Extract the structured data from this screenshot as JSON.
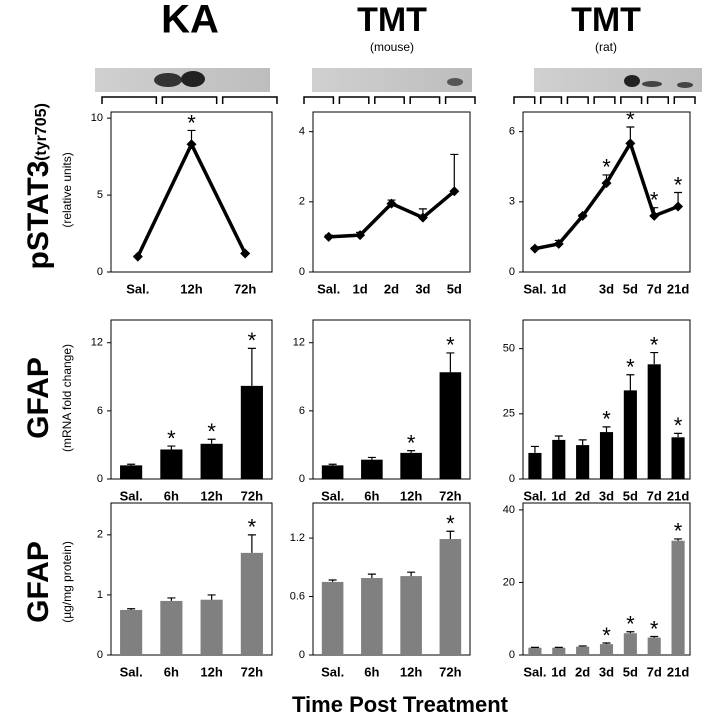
{
  "columns": [
    {
      "label": "KA"
    },
    {
      "label": "TMT",
      "sub": "(mouse)"
    },
    {
      "label": "TMT",
      "sub": "(rat)"
    }
  ],
  "rows": [
    {
      "label": "pSTAT3",
      "qualifier": "(tyr705)",
      "unit": "(relative units)"
    },
    {
      "label": "GFAP",
      "unit": "(mRNA fold change)"
    },
    {
      "label": "GFAP",
      "unit": "(µg/mg protein)"
    }
  ],
  "x_label": "Time Post Treatment",
  "chart_data": [
    {
      "type": "line",
      "color": "#000000",
      "categories": [
        "Sal.",
        "12h",
        "72h"
      ],
      "values": [
        1,
        8.3,
        1.2
      ],
      "errors": [
        0.05,
        0.9,
        0.05
      ],
      "annotations": [
        null,
        "*",
        null
      ],
      "ylim": [
        0,
        10.4
      ],
      "yticks": [
        0,
        5,
        10
      ]
    },
    {
      "type": "line",
      "color": "#000000",
      "categories": [
        "Sal.",
        "1d",
        "2d",
        "3d",
        "5d"
      ],
      "values": [
        1,
        1.05,
        1.95,
        1.55,
        2.3
      ],
      "errors": [
        0.05,
        0.08,
        0.1,
        0.25,
        1.05
      ],
      "annotations": [
        null,
        null,
        null,
        null,
        null
      ],
      "ylim": [
        0,
        4.56
      ],
      "yticks": [
        0,
        2,
        4
      ]
    },
    {
      "type": "line",
      "color": "#000000",
      "categories": [
        "Sal.",
        "1d",
        null,
        "3d",
        "5d",
        "7d",
        "21d"
      ],
      "values": [
        1,
        1.2,
        2.4,
        3.8,
        5.5,
        2.4,
        2.8
      ],
      "errors": [
        0.05,
        0.15,
        0.05,
        0.35,
        0.7,
        0.35,
        0.6
      ],
      "annotations": [
        null,
        null,
        null,
        "*",
        "*",
        "*",
        "*"
      ],
      "ylim": [
        0,
        6.84
      ],
      "yticks": [
        0,
        3,
        6
      ]
    },
    {
      "type": "bar",
      "color": "#000000",
      "categories": [
        "Sal.",
        "6h",
        "12h",
        "72h"
      ],
      "values": [
        1.2,
        2.6,
        3.1,
        8.2
      ],
      "errors": [
        0.1,
        0.3,
        0.4,
        3.3
      ],
      "annotations": [
        null,
        "*",
        "*",
        "*"
      ],
      "ylim": [
        0,
        14
      ],
      "yticks": [
        0,
        6,
        12
      ]
    },
    {
      "type": "bar",
      "color": "#000000",
      "categories": [
        "Sal.",
        "6h",
        "12h",
        "72h"
      ],
      "values": [
        1.2,
        1.7,
        2.3,
        9.4
      ],
      "errors": [
        0.1,
        0.2,
        0.2,
        1.7
      ],
      "annotations": [
        null,
        null,
        "*",
        "*"
      ],
      "ylim": [
        0,
        14
      ],
      "yticks": [
        0,
        6,
        12
      ]
    },
    {
      "type": "bar",
      "color": "#000000",
      "categories": [
        "Sal.",
        "1d",
        "2d",
        "3d",
        "5d",
        "7d",
        "21d"
      ],
      "values": [
        10,
        15,
        13,
        18,
        34,
        44,
        16
      ],
      "errors": [
        2.5,
        1.5,
        2,
        2,
        6,
        4.5,
        1.5
      ],
      "annotations": [
        null,
        null,
        null,
        "*",
        "*",
        "*",
        "*"
      ],
      "ylim": [
        0,
        61
      ],
      "yticks": [
        0,
        25,
        50
      ]
    },
    {
      "type": "bar",
      "color": "#808080",
      "categories": [
        "Sal.",
        "6h",
        "12h",
        "72h"
      ],
      "values": [
        0.75,
        0.9,
        0.92,
        1.7
      ],
      "errors": [
        0.02,
        0.05,
        0.08,
        0.3
      ],
      "annotations": [
        null,
        null,
        null,
        "*"
      ],
      "ylim": [
        0,
        2.53
      ],
      "yticks": [
        0,
        1,
        2
      ]
    },
    {
      "type": "bar",
      "color": "#808080",
      "categories": [
        "Sal.",
        "6h",
        "12h",
        "72h"
      ],
      "values": [
        0.75,
        0.79,
        0.81,
        1.19
      ],
      "errors": [
        0.02,
        0.04,
        0.04,
        0.08
      ],
      "annotations": [
        null,
        null,
        null,
        "*"
      ],
      "ylim": [
        0,
        1.56
      ],
      "yticks": [
        0,
        0.6,
        1.2
      ]
    },
    {
      "type": "bar",
      "color": "#808080",
      "categories": [
        "Sal.",
        "1d",
        "2d",
        "3d",
        "5d",
        "7d",
        "21d"
      ],
      "values": [
        2,
        2,
        2.3,
        3,
        6,
        4.8,
        31.5
      ],
      "errors": [
        0.1,
        0.1,
        0.2,
        0.3,
        0.4,
        0.3,
        0.5
      ],
      "annotations": [
        null,
        null,
        null,
        "*",
        "*",
        "*",
        "*"
      ],
      "ylim": [
        0,
        41.9
      ],
      "yticks": [
        0,
        20,
        40
      ]
    }
  ]
}
